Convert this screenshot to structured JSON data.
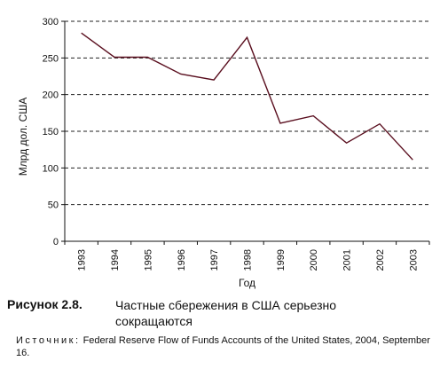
{
  "chart_data": {
    "type": "line",
    "x": [
      "1993",
      "1994",
      "1995",
      "1996",
      "1997",
      "1998",
      "1999",
      "2000",
      "2001",
      "2002",
      "2003"
    ],
    "series": [
      {
        "values": [
          284,
          251,
          251,
          228,
          220,
          278,
          161,
          171,
          134,
          160,
          111
        ]
      }
    ],
    "xlabel": "Год",
    "ylabel": "Млрд дол. США",
    "ylim": [
      0,
      300
    ],
    "yticks": [
      0,
      50,
      100,
      150,
      200,
      250,
      300
    ],
    "grid": "horizontal-dashed",
    "line_color": "#5a0f1f"
  },
  "caption": {
    "label": "Рисунок 2.8.",
    "title": "Частные сбережения в США серьезно сокращаются"
  },
  "source": {
    "label": "Источник:",
    "text": "Federal Reserve Flow of Funds Accounts of the United States, 2004, September 16."
  }
}
